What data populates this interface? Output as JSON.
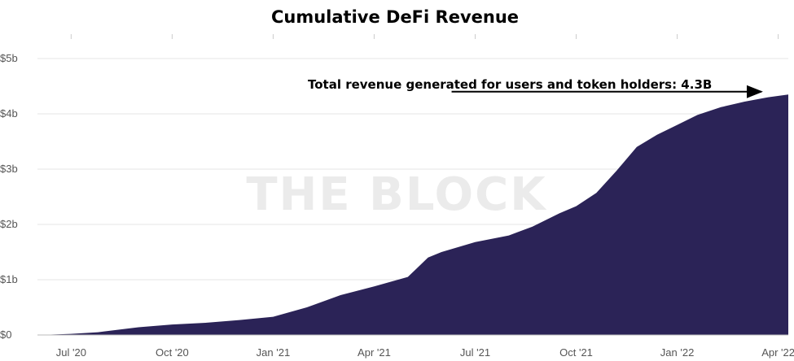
{
  "chart_data": {
    "type": "area",
    "title": "Cumulative DeFi Revenue",
    "xlabel": "",
    "ylabel": "",
    "ylim": [
      0,
      5
    ],
    "y_ticks": [
      {
        "value": 0,
        "label": "$0"
      },
      {
        "value": 1,
        "label": "$1b"
      },
      {
        "value": 2,
        "label": "$2b"
      },
      {
        "value": 3,
        "label": "$3b"
      },
      {
        "value": 4,
        "label": "$4b"
      },
      {
        "value": 5,
        "label": "$5b"
      }
    ],
    "x_range_months": [
      0,
      22.3
    ],
    "x_ticks": [
      {
        "value": 1,
        "label": "Jul '20"
      },
      {
        "value": 4,
        "label": "Oct '20"
      },
      {
        "value": 7,
        "label": "Jan '21"
      },
      {
        "value": 10,
        "label": "Apr '21"
      },
      {
        "value": 13,
        "label": "Jul '21"
      },
      {
        "value": 16,
        "label": "Oct '21"
      },
      {
        "value": 19,
        "label": "Jan '22"
      },
      {
        "value": 22,
        "label": "Apr '22"
      }
    ],
    "series": [
      {
        "name": "Cumulative revenue ($b)",
        "color": "#2b2357",
        "x": [
          0.05,
          1,
          1.8,
          3,
          4,
          5,
          6,
          7,
          8,
          9,
          10,
          11,
          11.6,
          12,
          13,
          14,
          14.7,
          15.5,
          16,
          16.6,
          17.2,
          17.8,
          18.4,
          19,
          19.6,
          20.3,
          21,
          21.7,
          22.3
        ],
        "values": [
          0.0,
          0.02,
          0.05,
          0.14,
          0.19,
          0.22,
          0.27,
          0.33,
          0.5,
          0.72,
          0.88,
          1.05,
          1.4,
          1.5,
          1.68,
          1.8,
          1.96,
          2.2,
          2.33,
          2.57,
          2.97,
          3.4,
          3.62,
          3.8,
          3.98,
          4.12,
          4.22,
          4.3,
          4.35
        ]
      }
    ],
    "annotation": {
      "text": "Total revenue generated for users and token holders: 4.3B",
      "arrow_start_month": 12.3,
      "arrow_end_month": 21.5,
      "arrow_level": 4.4
    },
    "watermark": "THE BLOCK",
    "grid": true,
    "legend": "none"
  }
}
